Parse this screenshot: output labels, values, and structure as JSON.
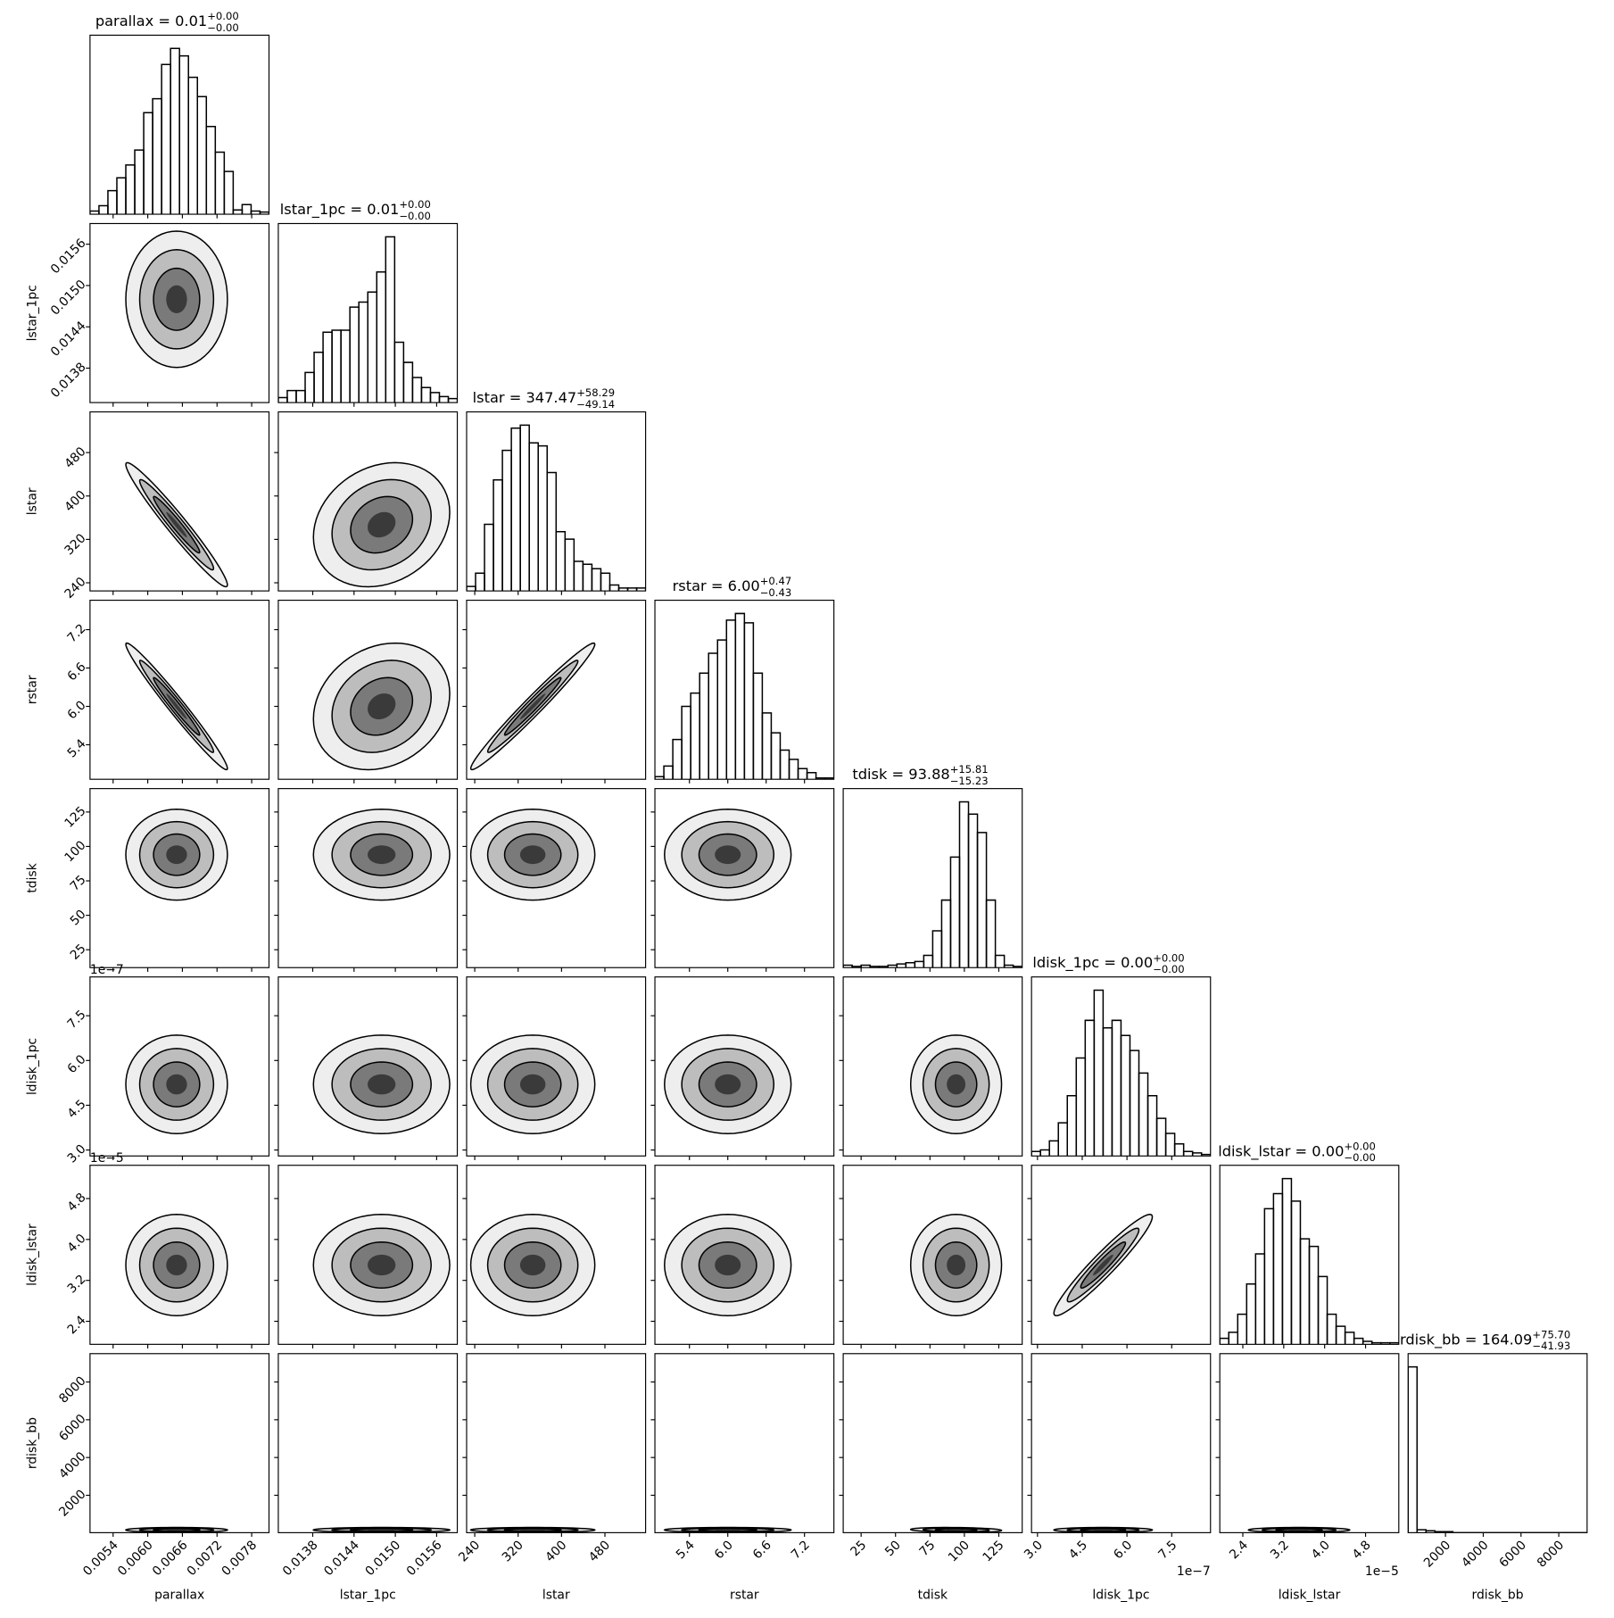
{
  "chart_data": {
    "type": "corner",
    "parameters": [
      {
        "name": "parallax",
        "title": {
          "text": "parallax = 0.01",
          "upper": "+0.00",
          "lower": "−0.00"
        },
        "xlim": [
          0.005,
          0.0081
        ],
        "xticks": [
          0.0054,
          {
            "value": 0.006,
            "label": "0.0060"
          },
          0.0066,
          0.0072,
          0.0078
        ],
        "median": 0.0065,
        "sigma": 0.0004,
        "bins": [
          0.005,
          0.005155,
          0.00531,
          0.005465,
          0.00562,
          0.005775,
          0.00593,
          0.006085,
          0.00624,
          0.006395,
          0.00655,
          0.006705,
          0.00686,
          0.007015,
          0.00717,
          0.007325,
          0.00748,
          0.007635,
          0.00779,
          0.007945,
          0.0081
        ],
        "counts": [
          3,
          8,
          22,
          34,
          46,
          60,
          95,
          108,
          140,
          155,
          148,
          128,
          110,
          82,
          58,
          40,
          4,
          9,
          3,
          2
        ]
      },
      {
        "name": "lstar_1pc",
        "title": {
          "text": "lstar_1pc = 0.01",
          "upper": "+0.00",
          "lower": "−0.00"
        },
        "xlim": [
          0.0133,
          0.0159
        ],
        "xticks": [
          0.0138,
          0.0144,
          {
            "value": 0.015,
            "label": "0.0150"
          },
          0.0156
        ],
        "median": 0.0148,
        "sigma": 0.00045,
        "bins": [
          0.0133,
          0.01343,
          0.01356,
          0.01369,
          0.01382,
          0.01395,
          0.01408,
          0.01421,
          0.01434,
          0.01447,
          0.0146,
          0.01473,
          0.01486,
          0.01499,
          0.01512,
          0.01525,
          0.01538,
          0.01551,
          0.01564,
          0.01577,
          0.0159
        ],
        "counts": [
          5,
          12,
          12,
          30,
          50,
          70,
          72,
          72,
          95,
          100,
          110,
          130,
          165,
          60,
          40,
          25,
          15,
          10,
          6,
          4
        ]
      },
      {
        "name": "lstar",
        "title": {
          "text": "lstar = 347.47",
          "upper": "+58.29",
          "lower": "−49.14"
        },
        "xlim": [
          225,
          555
        ],
        "xticks": [
          240,
          320,
          400,
          480
        ],
        "median": 347,
        "sigma": 52,
        "bins": [
          225,
          241.5,
          258,
          274.5,
          291,
          307.5,
          324,
          340.5,
          357,
          373.5,
          390,
          406.5,
          423,
          439.5,
          456,
          472.5,
          489,
          505.5,
          522,
          538.5,
          555
        ],
        "counts": [
          3,
          12,
          45,
          75,
          95,
          110,
          112,
          100,
          98,
          80,
          40,
          35,
          20,
          18,
          15,
          12,
          4,
          2,
          2,
          2
        ]
      },
      {
        "name": "rstar",
        "title": {
          "text": "rstar = 6.00",
          "upper": "+0.47",
          "lower": "−0.43"
        },
        "xlim": [
          4.86,
          7.66
        ],
        "xticks": [
          5.4,
          {
            "value": 6,
            "label": "6.0"
          },
          6.6,
          7.2
        ],
        "median": 6.0,
        "sigma": 0.45,
        "bins": [
          4.86,
          5.0,
          5.14,
          5.28,
          5.42,
          5.56,
          5.7,
          5.84,
          5.98,
          6.12,
          6.26,
          6.4,
          6.54,
          6.68,
          6.82,
          6.96,
          7.1,
          7.24,
          7.38,
          7.52,
          7.66
        ],
        "counts": [
          2,
          10,
          30,
          55,
          65,
          80,
          95,
          105,
          120,
          125,
          118,
          80,
          50,
          35,
          22,
          15,
          8,
          5,
          1,
          1
        ]
      },
      {
        "name": "tdisk",
        "title": {
          "text": "tdisk = 93.88",
          "upper": "+15.81",
          "lower": "−15.23"
        },
        "xlim": [
          12,
          142
        ],
        "xticks": [
          25,
          50,
          75,
          100,
          125
        ],
        "median": 94,
        "sigma": 15,
        "bins": [
          12,
          18.5,
          25,
          31.5,
          38,
          44.5,
          51,
          57.5,
          64,
          70.5,
          77,
          83.5,
          90,
          96.5,
          103,
          109.5,
          116,
          122.5,
          129,
          135.5,
          142
        ],
        "counts": [
          2,
          1,
          2,
          1,
          1,
          2,
          3,
          4,
          5,
          10,
          30,
          55,
          90,
          135,
          125,
          110,
          55,
          10,
          2,
          1
        ]
      },
      {
        "name": "ldisk_1pc",
        "title": {
          "text": "ldisk_1pc = 0.00",
          "upper": "+0.00",
          "lower": "−0.00"
        },
        "offset": "1e−7",
        "xlim": [
          2.8,
          8.8
        ],
        "xticks": [
          {
            "value": 3,
            "label": "3.0"
          },
          4.5,
          {
            "value": 6,
            "label": "6.0"
          },
          7.5
        ],
        "median": 5.2,
        "sigma": 0.75,
        "bins": [
          2.8,
          3.1,
          3.4,
          3.7,
          4.0,
          4.3,
          4.6,
          4.9,
          5.2,
          5.5,
          5.8,
          6.1,
          6.4,
          6.7,
          7.0,
          7.3,
          7.6,
          7.9,
          8.2,
          8.5,
          8.8
        ],
        "counts": [
          3,
          4,
          10,
          22,
          40,
          65,
          90,
          110,
          85,
          90,
          80,
          70,
          55,
          40,
          25,
          15,
          8,
          3,
          2,
          1
        ]
      },
      {
        "name": "ldisk_lstar",
        "title": {
          "text": "ldisk_lstar = 0.00",
          "upper": "+0.00",
          "lower": "−0.00"
        },
        "offset": "1e−5",
        "xlim": [
          1.95,
          5.45
        ],
        "xticks": [
          2.4,
          3.2,
          {
            "value": 4,
            "label": "4.0"
          },
          4.8
        ],
        "median": 3.5,
        "sigma": 0.45,
        "bins": [
          1.95,
          2.125,
          2.3,
          2.475,
          2.65,
          2.825,
          3.0,
          3.175,
          3.35,
          3.525,
          3.7,
          3.875,
          4.05,
          4.225,
          4.4,
          4.575,
          4.75,
          4.925,
          5.1,
          5.275,
          5.45
        ],
        "counts": [
          4,
          8,
          20,
          40,
          60,
          90,
          100,
          110,
          95,
          70,
          65,
          45,
          20,
          12,
          8,
          4,
          2,
          1,
          1,
          1
        ]
      },
      {
        "name": "rdisk_bb",
        "title": {
          "text": "rdisk_bb = 164.09",
          "upper": "+75.70",
          "lower": "−41.93"
        },
        "xlim": [
          20,
          9500
        ],
        "xticks": [
          2000,
          4000,
          6000,
          8000
        ],
        "median": 164,
        "sigma": 60,
        "bins": [
          20,
          494,
          968,
          1442,
          1916,
          2390,
          2864,
          3338,
          3812,
          4286,
          4760,
          5234,
          5708,
          6182,
          6656,
          7130,
          7604,
          8078,
          8552,
          9026,
          9500
        ],
        "counts": [
          170,
          3,
          2,
          1,
          1,
          0,
          0,
          0,
          0,
          0,
          0,
          0,
          0,
          0,
          0,
          0,
          0,
          0,
          0,
          0
        ]
      }
    ],
    "correlations": [
      [
        0.0
      ],
      [
        -0.97,
        0.2
      ],
      [
        -0.98,
        0.2,
        0.98
      ],
      [
        0.0,
        0.0,
        0.0,
        0.0
      ],
      [
        0.0,
        0.0,
        0.0,
        0.0,
        0.0
      ],
      [
        0.0,
        0.0,
        0.0,
        0.0,
        0.0,
        0.95
      ],
      [
        0.0,
        0.0,
        0.0,
        0.0,
        -0.2,
        0.0,
        0.0
      ]
    ]
  }
}
